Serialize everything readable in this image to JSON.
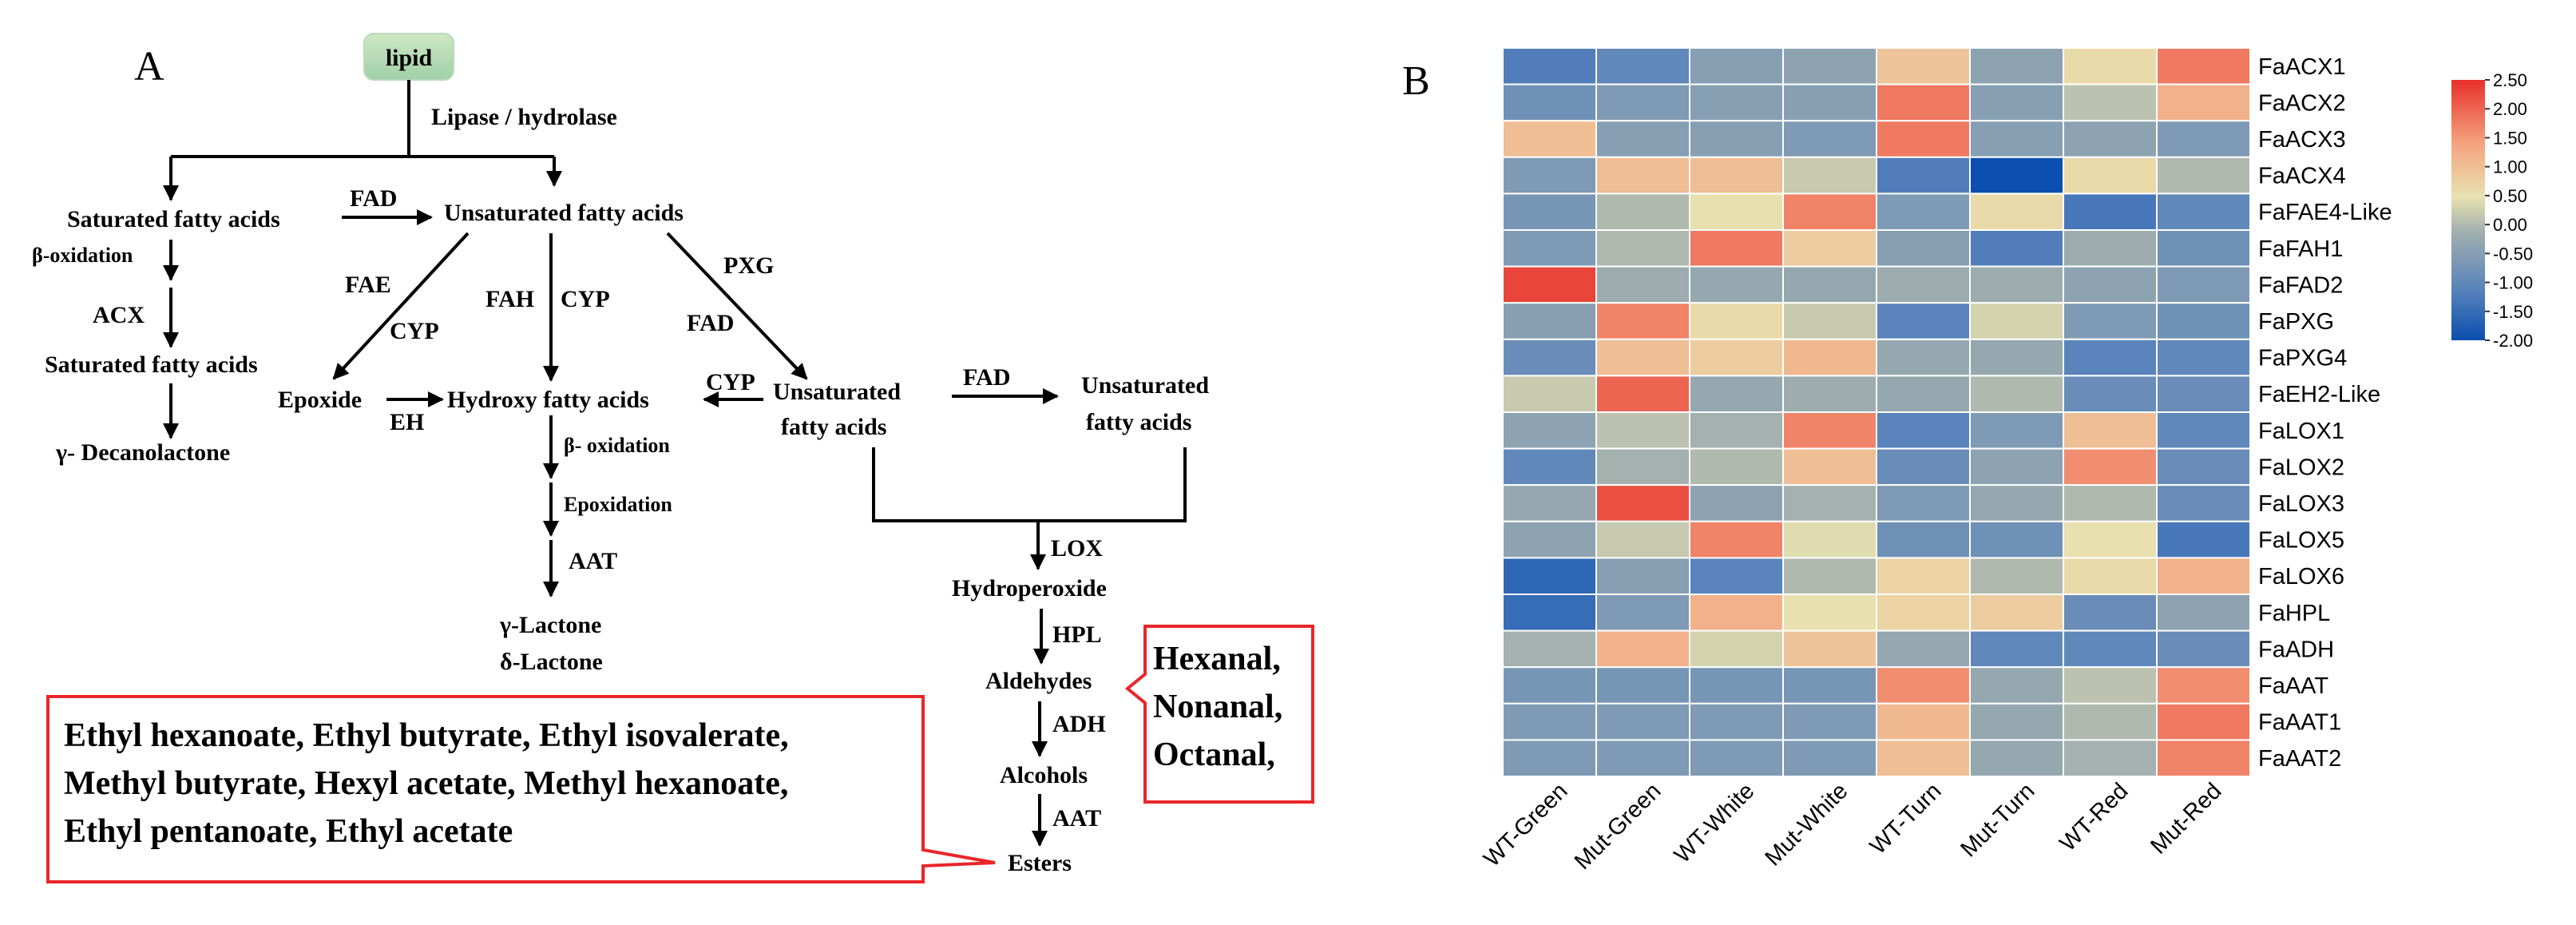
{
  "panel_a": {
    "label": "A",
    "lipid": "lipid",
    "lipase": "Lipase / hydrolase",
    "sat1": "Saturated fatty acids",
    "fad1": "FAD",
    "unsat_main": "Unsaturated fatty acids",
    "beta_ox": "β-oxidation",
    "acx": "ACX",
    "sat2": "Saturated fatty acids",
    "gamma_dec": "γ- Decanolactone",
    "fae": "FAE",
    "cyp_left": "CYP",
    "fah": "FAH",
    "cyp_mid": "CYP",
    "pxg": "PXG",
    "fad_mid": "FAD",
    "epoxide": "Epoxide",
    "eh": "EH",
    "hydroxy": "Hydroxy fatty acids",
    "cyp_right": "CYP",
    "unsat_r1a": "Unsaturated",
    "unsat_r1b": "fatty acids",
    "fad_right": "FAD",
    "unsat_r2a": "Unsaturated",
    "unsat_r2b": "fatty acids",
    "beta_ox2": "β- oxidation",
    "epoxidation": "Epoxidation",
    "aat_left": "AAT",
    "g_lactone": "γ-Lactone",
    "d_lactone": "δ-Lactone",
    "lox": "LOX",
    "hydroperoxide": "Hydroperoxide",
    "hpl": "HPL",
    "aldehydes": "Aldehydes",
    "adh": "ADH",
    "alcohols": "Alcohols",
    "aat_right": "AAT",
    "esters": "Esters",
    "callout_right": [
      "Hexanal,",
      "Nonanal,",
      "Octanal,"
    ],
    "callout_left": [
      "Ethyl hexanoate, Ethyl butyrate, Ethyl isovalerate,",
      "Methyl butyrate, Hexyl acetate, Methyl hexanoate,",
      "Ethyl pentanoate, Ethyl acetate"
    ]
  },
  "panel_b": {
    "label": "B"
  },
  "chart_data": {
    "type": "heatmap",
    "columns": [
      "WT-Green",
      "Mut-Green",
      "WT-White",
      "Mut-White",
      "WT-Turn",
      "Mut-Turn",
      "WT-Red",
      "Mut-Red"
    ],
    "rows": [
      "FaACX1",
      "FaACX2",
      "FaACX3",
      "FaACX4",
      "FaFAE4-Like",
      "FaFAH1",
      "FaFAD2",
      "FaPXG",
      "FaPXG4",
      "FaEH2-Like",
      "FaLOX1",
      "FaLOX2",
      "FaLOX3",
      "FaLOX5",
      "FaLOX6",
      "FaHPL",
      "FaADH",
      "FaAAT",
      "FaAAT1",
      "FaAAT2"
    ],
    "values": [
      [
        -1.2,
        -1.0,
        -0.5,
        -0.4,
        0.9,
        -0.4,
        0.6,
        1.8
      ],
      [
        -0.8,
        -0.6,
        -0.5,
        -0.5,
        1.8,
        -0.5,
        0.1,
        1.2
      ],
      [
        1.0,
        -0.5,
        -0.5,
        -0.6,
        1.8,
        -0.5,
        -0.4,
        -0.6
      ],
      [
        -0.6,
        1.0,
        1.0,
        0.2,
        -1.2,
        -2.0,
        0.6,
        0.0
      ],
      [
        -0.7,
        0.0,
        0.5,
        1.7,
        -0.6,
        0.6,
        -1.3,
        -1.0
      ],
      [
        -0.6,
        0.0,
        1.8,
        0.8,
        -0.5,
        -1.2,
        -0.2,
        -0.8
      ],
      [
        2.3,
        -0.2,
        -0.3,
        -0.3,
        -0.2,
        -0.2,
        -0.4,
        -0.6
      ],
      [
        -0.5,
        1.7,
        0.6,
        0.2,
        -1.1,
        0.3,
        -0.6,
        -0.8
      ],
      [
        -0.9,
        1.0,
        0.8,
        1.1,
        -0.3,
        -0.3,
        -1.1,
        -1.0
      ],
      [
        0.2,
        2.0,
        -0.3,
        -0.2,
        -0.3,
        0.0,
        -0.9,
        -0.9
      ],
      [
        -0.4,
        0.1,
        -0.1,
        1.7,
        -1.1,
        -0.6,
        1.0,
        -1.0
      ],
      [
        -1.0,
        -0.1,
        0.0,
        1.0,
        -0.9,
        -0.4,
        1.6,
        -0.9
      ],
      [
        -0.3,
        2.2,
        -0.4,
        -0.1,
        -0.6,
        -0.3,
        0.0,
        -0.9
      ],
      [
        -0.4,
        0.2,
        1.7,
        0.4,
        -0.8,
        -0.8,
        0.5,
        -1.3
      ],
      [
        -1.6,
        -0.5,
        -1.1,
        0.0,
        0.7,
        0.0,
        0.6,
        1.2
      ],
      [
        -1.5,
        -0.6,
        1.2,
        0.5,
        0.7,
        0.8,
        -0.9,
        -0.4
      ],
      [
        -0.1,
        1.2,
        0.3,
        0.9,
        -0.3,
        -1.0,
        -1.0,
        -0.9
      ],
      [
        -0.7,
        -0.7,
        -0.7,
        -0.7,
        1.6,
        -0.3,
        0.1,
        1.6
      ],
      [
        -0.6,
        -0.6,
        -0.6,
        -0.6,
        1.1,
        -0.3,
        0.0,
        1.8
      ],
      [
        -0.6,
        -0.6,
        -0.6,
        -0.6,
        1.0,
        -0.3,
        -0.1,
        1.7
      ]
    ],
    "color_scale": {
      "min": -2.0,
      "max": 2.5,
      "ticks": [
        "2.50",
        "2.00",
        "1.50",
        "1.00",
        "0.50",
        "0.00",
        "-0.50",
        "-1.00",
        "-1.50",
        "-2.00"
      ],
      "stops": [
        "#0b4fb0",
        "#5a84bb",
        "#a3b0ae",
        "#e8e2b0",
        "#f4a581",
        "#e8302b"
      ]
    }
  }
}
